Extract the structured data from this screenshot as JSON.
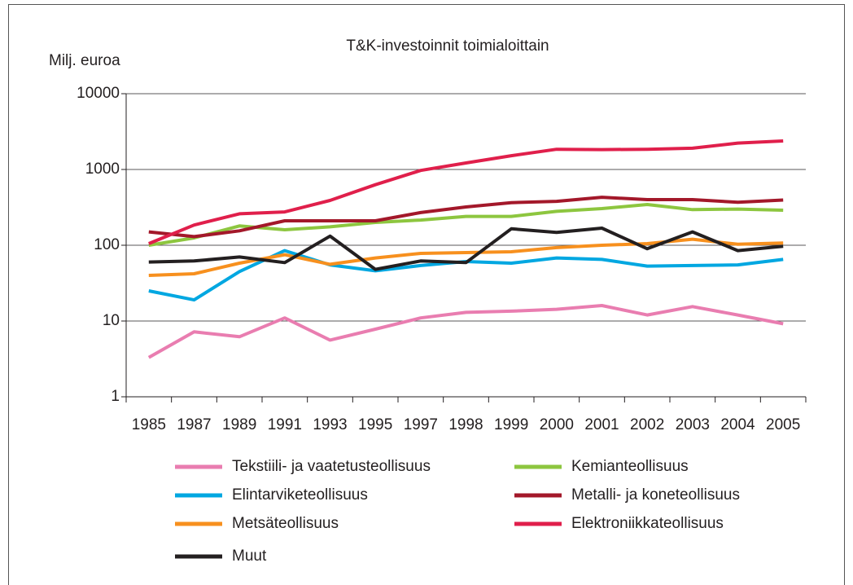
{
  "chart_data": {
    "type": "line",
    "title": "T&K-investoinnit toimialoittain",
    "y_label": "Milj. euroa",
    "categories": [
      "1985",
      "1987",
      "1989",
      "1991",
      "1993",
      "1995",
      "1997",
      "1998",
      "1999",
      "2000",
      "2001",
      "2002",
      "2003",
      "2004",
      "2005"
    ],
    "yscale": "log",
    "ylim": [
      1,
      10000
    ],
    "yticks": [
      1,
      10,
      100,
      1000,
      10000
    ],
    "grid": true,
    "legend": "bottom",
    "series": [
      {
        "name": "Tekstiili- ja vaatetusteollisuus",
        "color": "#e97db0",
        "values": [
          3.3,
          7.2,
          6.2,
          11,
          5.6,
          7.8,
          11,
          13,
          13.5,
          14.3,
          16,
          12,
          15.5,
          12,
          9.2
        ]
      },
      {
        "name": "Elintarviketeollisuus",
        "color": "#00a7e1",
        "values": [
          25,
          19,
          45,
          85,
          55,
          46,
          54,
          61,
          58,
          68,
          65,
          53,
          54,
          55,
          65
        ]
      },
      {
        "name": "Metsäteollisuus",
        "color": "#f7901e",
        "values": [
          40,
          42,
          58,
          75,
          56,
          68,
          78,
          80,
          82,
          93,
          100,
          105,
          120,
          103,
          107
        ]
      },
      {
        "name": "Muut",
        "color": "#231f20",
        "values": [
          60,
          62,
          70,
          59,
          132,
          48,
          62,
          59,
          165,
          148,
          168,
          90,
          150,
          85,
          97
        ]
      },
      {
        "name": "Kemianteollisuus",
        "color": "#8dc63f",
        "values": [
          100,
          125,
          180,
          160,
          175,
          200,
          215,
          240,
          240,
          280,
          305,
          345,
          295,
          300,
          290
        ]
      },
      {
        "name": "Metalli- ja koneteollisuus",
        "color": "#a3182a",
        "values": [
          150,
          130,
          155,
          210,
          210,
          210,
          270,
          320,
          365,
          380,
          430,
          400,
          400,
          370,
          395
        ]
      },
      {
        "name": "Elektroniikkateollisuus",
        "color": "#e01f4b",
        "values": [
          105,
          185,
          260,
          275,
          390,
          630,
          970,
          1220,
          1520,
          1850,
          1830,
          1850,
          1910,
          2230,
          2380
        ]
      }
    ]
  }
}
